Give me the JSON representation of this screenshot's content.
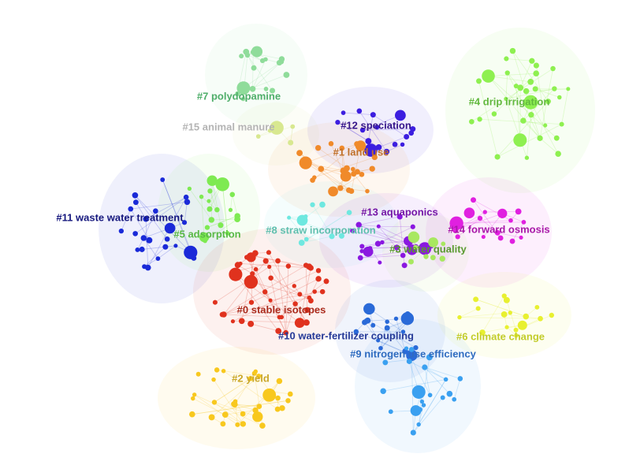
{
  "clusters": [
    {
      "label": "#7 polydopamine",
      "color": "#4fae6a"
    },
    {
      "label": "#15 animal manure",
      "color": "#b4b4b4"
    },
    {
      "label": "#12 speciation",
      "color": "#35158a"
    },
    {
      "label": "#1 land use",
      "color": "#c0702a"
    },
    {
      "label": "#4 drip irrigation",
      "color": "#62b83e"
    },
    {
      "label": "#11 waste water treatment",
      "color": "#16187e"
    },
    {
      "label": "#5 adsorption",
      "color": "#58b845"
    },
    {
      "label": "#8 straw incorporation",
      "color": "#5fbfae"
    },
    {
      "label": "#13 aquaponics",
      "color": "#7417a6"
    },
    {
      "label": "#14 forward osmosis",
      "color": "#a818a8"
    },
    {
      "label": "#3 water quality",
      "color": "#5a9a30"
    },
    {
      "label": "#0 stable isotopes",
      "color": "#aa2a1c"
    },
    {
      "label": "#10 water-fertilizer coupling",
      "color": "#263a98"
    },
    {
      "label": "#6 climate change",
      "color": "#c2cc2a"
    },
    {
      "label": "#9 nitrogen use efficiency",
      "color": "#2f6cc0"
    },
    {
      "label": "#2 yield",
      "color": "#caa82a"
    }
  ]
}
